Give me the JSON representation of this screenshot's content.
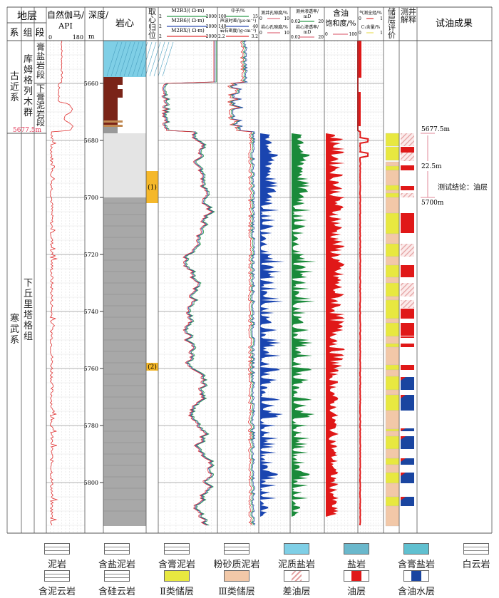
{
  "header": {
    "strata": "地层",
    "system": "系",
    "formation": "组",
    "member": "段",
    "gr": {
      "label1": "自然伽马/",
      "label2": "API",
      "min": "0",
      "max": "180",
      "color": "#e03030"
    },
    "depth": {
      "label1": "深度/",
      "label2": "m"
    },
    "core": "岩心",
    "core_pos": "取心归位",
    "res": [
      {
        "name": "M2R3/( Ω·m)",
        "min": "2",
        "max": "2000",
        "color": "#2a9a4a"
      },
      {
        "name": "M2R6/( Ω·m)",
        "min": "2",
        "max": "2000",
        "color": "#2a4ab0"
      },
      {
        "name": "M2RX/( Ω·m)",
        "min": "2",
        "max": "2000",
        "color": "#e03030"
      }
    ],
    "nd": [
      {
        "name": "中子/%",
        "min": "100",
        "max": "15",
        "color": "#2a9a4a"
      },
      {
        "name": "声波时差/(μs·m⁻¹)",
        "min": "140",
        "max": "40",
        "color": "#2a4ab0"
      },
      {
        "name": "岩石密度/(g·cm⁻³)",
        "min": "2.2",
        "max": "3.2",
        "color": "#e03030"
      }
    ],
    "por": [
      {
        "name": "测井孔隙度/%",
        "min": "0",
        "max": "10"
      },
      {
        "name": "岩心孔隙度/%",
        "min": "0",
        "max": "10"
      }
    ],
    "perm": [
      {
        "name": "测井渗透率/",
        "unit": "mD",
        "min": "0.02",
        "max": "20"
      },
      {
        "name": "岩心渗透率/",
        "unit": "mD",
        "min": "0.02",
        "max": "20"
      }
    ],
    "sat": {
      "name1": "含油",
      "name2": "饱和度/%",
      "min": "0",
      "max": "100"
    },
    "gas": [
      {
        "name": "气测全烃/%",
        "min": "0",
        "max": "1"
      },
      {
        "name": "C₁含量/%",
        "min": "0",
        "max": "1"
      }
    ],
    "reservoir": "储层评价",
    "interp": "测井解释",
    "test": "试油成果"
  },
  "strat": {
    "systems": [
      {
        "name": "古近系",
        "top": 5645,
        "base": 5677.5
      },
      {
        "name": "寒武系",
        "top": 5677.5,
        "base": 5817.7
      }
    ],
    "formations": [
      {
        "name": "库姆格列木群",
        "top": 5645,
        "base": 5677.5
      },
      {
        "name": "下丘里塔格组",
        "top": 5677.5,
        "base": 5817.7
      }
    ],
    "members": [
      {
        "name": "膏盐岩段",
        "top": 5645,
        "base": 5660
      },
      {
        "name": "下膏泥岩段",
        "top": 5660,
        "base": 5677.5
      }
    ],
    "boundary_label": "5677.5m"
  },
  "depth_ticks": [
    5660,
    5680,
    5700,
    5720,
    5740,
    5760,
    5780,
    5800
  ],
  "core_positions": [
    {
      "label": "(1)",
      "top": 5690.75,
      "base": 5702
    },
    {
      "label": "(2)",
      "top": 5758,
      "base": 5760.75
    }
  ],
  "reservoir_eval": [
    [
      "II",
      5677.5,
      5682
    ],
    [
      "II",
      5682.25,
      5687
    ],
    [
      "III",
      5687.5,
      5689
    ],
    [
      "II",
      5689,
      5690.5
    ],
    [
      "III",
      5690.5,
      5695.75
    ],
    [
      "II",
      5695.75,
      5697.5
    ],
    [
      "III",
      5697.5,
      5698.5
    ],
    [
      "II",
      5698.5,
      5700
    ],
    [
      "III",
      5700,
      5705.5
    ],
    [
      "II",
      5705.5,
      5712.75
    ],
    [
      "III",
      5712.75,
      5716.25
    ],
    [
      "II",
      5716.25,
      5720.75
    ],
    [
      "III",
      5720.75,
      5723.75
    ],
    [
      "II",
      5723.75,
      5728
    ],
    [
      "III",
      5728,
      5730
    ],
    [
      "II",
      5730,
      5734.75
    ],
    [
      "III",
      5734.75,
      5736
    ],
    [
      "II",
      5736,
      5742.5
    ],
    [
      "III",
      5742.5,
      5744
    ],
    [
      "II",
      5744,
      5748.75
    ],
    [
      "III",
      5748.75,
      5751.25
    ],
    [
      "II",
      5751.25,
      5752.5
    ],
    [
      "III",
      5752.5,
      5758.75
    ],
    [
      "II",
      5758.75,
      5760.5
    ],
    [
      "III",
      5760.5,
      5762.75
    ],
    [
      "II",
      5762.75,
      5767.5
    ],
    [
      "III",
      5767.5,
      5769.25
    ],
    [
      "II",
      5769.25,
      5774.75
    ],
    [
      "III",
      5774.75,
      5781.25
    ],
    [
      "II",
      5781.25,
      5782
    ],
    [
      "III",
      5782,
      5783.75
    ],
    [
      "II",
      5783.75,
      5788.25
    ],
    [
      "III",
      5788.25,
      5791.5
    ],
    [
      "II",
      5791.5,
      5793.75
    ],
    [
      "III",
      5793.75,
      5796.5
    ],
    [
      "II",
      5796.5,
      5800.25
    ],
    [
      "III",
      5800.25,
      5805
    ],
    [
      "II",
      5805,
      5808.25
    ],
    [
      "III",
      5808.25,
      5815.25
    ]
  ],
  "interpretation": [
    [
      "poor",
      5677.5,
      5682
    ],
    [
      "oil",
      5682.25,
      5684.25
    ],
    [
      "poor",
      5684.25,
      5687.25
    ],
    [
      "oil",
      5688.75,
      5690.5
    ],
    [
      "oil",
      5696,
      5697.5
    ],
    [
      "poor",
      5698.5,
      5700
    ],
    [
      "oil",
      5705.5,
      5712.5
    ],
    [
      "poor",
      5716.25,
      5720.75
    ],
    [
      "oil",
      5723.75,
      5728
    ],
    [
      "poor",
      5730,
      5734.75
    ],
    [
      "poor",
      5736,
      5738.75
    ],
    [
      "oil",
      5739,
      5742.5
    ],
    [
      "oil",
      5744,
      5748.5
    ],
    [
      "oil",
      5748.75,
      5749.25
    ],
    [
      "oil",
      5751.25,
      5752.5
    ],
    [
      "oil",
      5758.75,
      5760.5
    ],
    [
      "water",
      5763,
      5767.5
    ],
    [
      "water",
      5769.25,
      5774.75
    ],
    [
      "water",
      5781,
      5782
    ],
    [
      "water",
      5783.75,
      5788.25
    ],
    [
      "water",
      5791.5,
      5793.75
    ],
    [
      "water",
      5796.5,
      5800.25
    ],
    [
      "water",
      5805,
      5808.25
    ]
  ],
  "test_result": {
    "top": "5677.5m",
    "thickness": "22.5m",
    "base": "5700m",
    "conclusion": "测试结论：油层"
  },
  "legend": [
    {
      "label": "泥岩",
      "type": "mud"
    },
    {
      "label": "含盐泥岩",
      "type": "saltmud"
    },
    {
      "label": "含膏泥岩",
      "type": "gypmud"
    },
    {
      "label": "粉砂质泥岩",
      "type": "siltmud"
    },
    {
      "label": "泥质盐岩",
      "type": "mudsalt"
    },
    {
      "label": "盐岩",
      "type": "salt"
    },
    {
      "label": "含膏盐岩",
      "type": "gypsalt"
    },
    {
      "label": "白云岩",
      "type": "dolo"
    },
    {
      "label": "含泥云岩",
      "type": "muddolo"
    },
    {
      "label": "含硅云岩",
      "type": "sildolo"
    },
    {
      "label": "Ⅱ类储层",
      "type": "II"
    },
    {
      "label": "Ⅲ类储层",
      "type": "III"
    },
    {
      "label": "差油层",
      "type": "poor"
    },
    {
      "label": "油层",
      "type": "oil"
    },
    {
      "label": "含油水层",
      "type": "water"
    }
  ],
  "colors": {
    "II": "#e8e840",
    "III": "#f2c8a8",
    "oil": "#e01818",
    "water": "#1a45a0",
    "salt": "#7fcfe6",
    "mud": "#7a2418",
    "core_light": "#e4e4e4",
    "core_dark": "#a8a8a8",
    "porosity": "#1a45b0",
    "perm": "#1a8a3a",
    "sat": "#e01818"
  }
}
